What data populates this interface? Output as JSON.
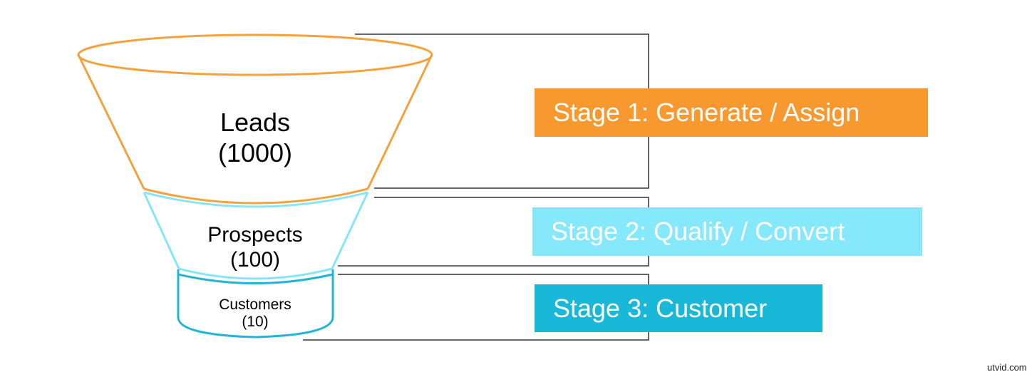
{
  "funnel": [
    {
      "label": "Leads",
      "count": "(1000)",
      "color": "#f4a23c"
    },
    {
      "label": "Prospects",
      "count": "(100)",
      "color": "#86e6f7"
    },
    {
      "label": "Customers",
      "count": "(10)",
      "color": "#22b5d6"
    }
  ],
  "stages": [
    {
      "label": "Stage 1: Generate / Assign",
      "color": "#f7992e"
    },
    {
      "label": "Stage 2: Qualify / Convert",
      "color": "#86e9fb"
    },
    {
      "label": "Stage 3: Customer",
      "color": "#1ab8d8"
    }
  ],
  "watermark": "utvid.com"
}
